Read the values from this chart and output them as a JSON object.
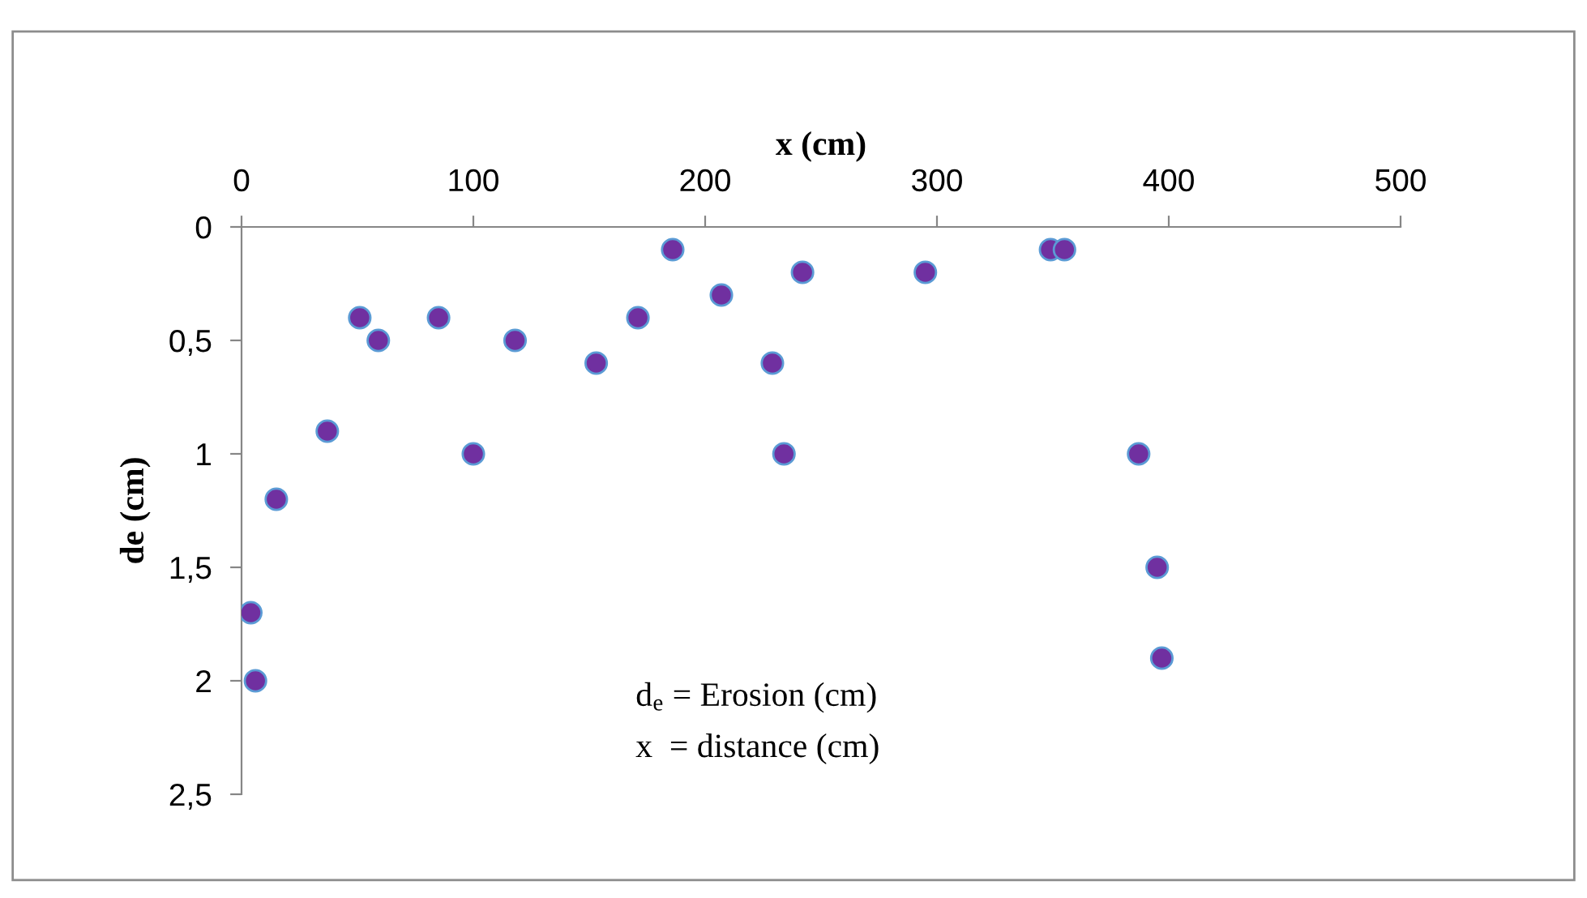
{
  "chart_data": {
    "type": "scatter",
    "xlabel": "x (cm)",
    "ylabel": "de (cm)",
    "x": [
      4,
      6,
      15,
      37,
      51,
      59,
      85,
      100,
      118,
      153,
      171,
      186,
      207,
      229,
      234,
      242,
      295,
      349,
      355,
      387,
      395,
      397
    ],
    "series": [
      {
        "color": "#7030a0",
        "values": [
          1.7,
          2.0,
          1.2,
          0.9,
          0.4,
          0.5,
          0.4,
          1.0,
          0.5,
          0.6,
          0.4,
          0.1,
          0.3,
          0.6,
          1.0,
          0.2,
          0.2,
          0.1,
          0.1,
          1.0,
          1.5,
          1.9
        ]
      }
    ],
    "xlim": [
      0,
      500
    ],
    "xticks": [
      0,
      100,
      200,
      300,
      400,
      500
    ],
    "ylim": [
      2.5,
      0
    ],
    "yticks": [
      0,
      {
        "value": 0.5,
        "label": "0,5"
      },
      1,
      {
        "value": 1.5,
        "label": "1,5"
      },
      2,
      {
        "value": 2.5,
        "label": "2,5"
      }
    ],
    "marker": "circle",
    "grid": false,
    "annotations": [
      "d$_{e}$ = Erosion (cm)",
      "x  = distance (cm)"
    ]
  }
}
